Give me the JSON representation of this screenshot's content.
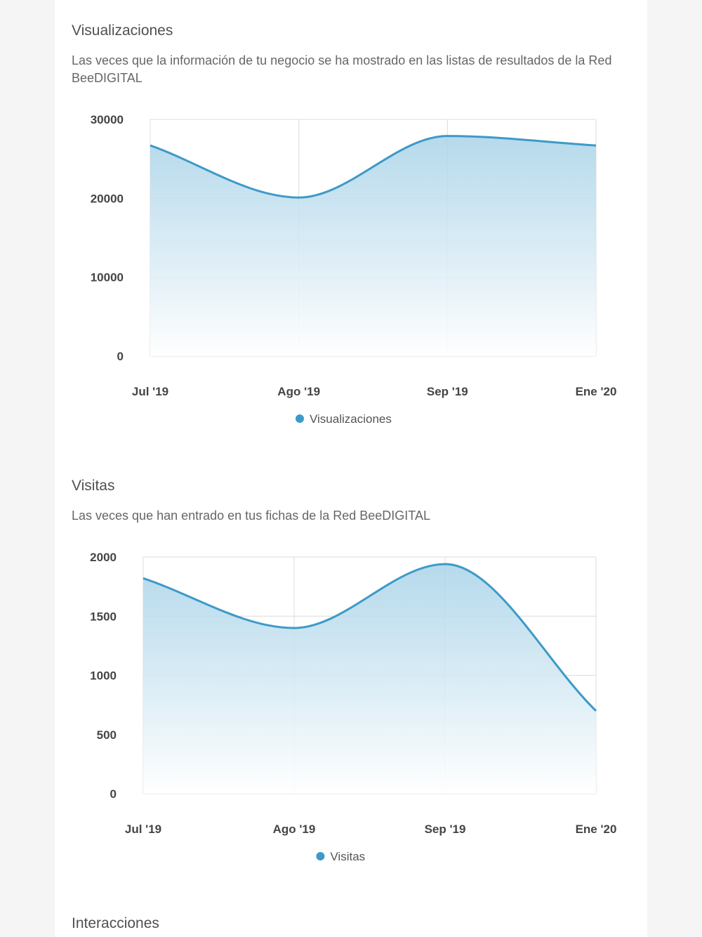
{
  "sections": [
    {
      "title": "Visualizaciones",
      "description": "Las veces que la información de tu negocio se ha mostrado en las listas de resultados de la Red BeeDIGITAL"
    },
    {
      "title": "Visitas",
      "description": "Las veces que han entrado en tus fichas de la Red BeeDIGITAL"
    },
    {
      "title": "Interacciones",
      "description": ""
    }
  ],
  "colors": {
    "line": "#3d9ac8",
    "area_top": "#a9d3e8",
    "area_bottom": "#ffffff",
    "grid": "#dcdcdc"
  },
  "chart_data": [
    {
      "type": "area",
      "categories": [
        "Jul '19",
        "Ago '19",
        "Sep '19",
        "Ene '20"
      ],
      "series": [
        {
          "name": "Visualizaciones",
          "values": [
            26700,
            20100,
            27900,
            26700
          ]
        }
      ],
      "ylim": [
        0,
        30000
      ],
      "yticks": [
        0,
        10000,
        20000,
        30000
      ],
      "grid": true,
      "legend": "bottom-center",
      "smooth": true
    },
    {
      "type": "area",
      "categories": [
        "Jul '19",
        "Ago '19",
        "Sep '19",
        "Ene '20"
      ],
      "series": [
        {
          "name": "Visitas",
          "values": [
            1820,
            1400,
            1940,
            700
          ]
        }
      ],
      "ylim": [
        0,
        2000
      ],
      "yticks": [
        0,
        500,
        1000,
        1500,
        2000
      ],
      "grid": true,
      "legend": "bottom-center",
      "smooth": true
    }
  ]
}
